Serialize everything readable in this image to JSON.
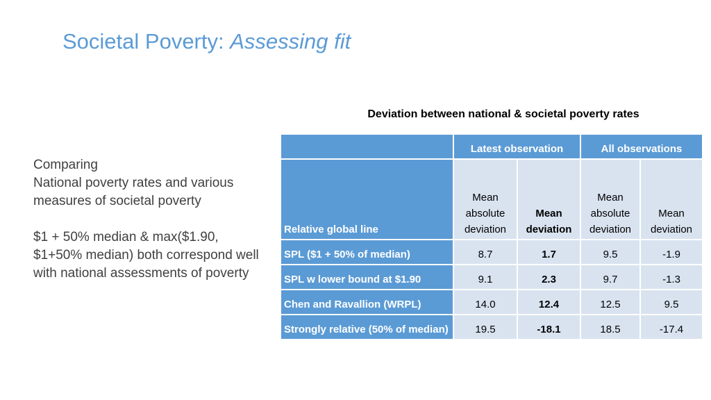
{
  "title": {
    "main": "Societal Poverty:",
    "emphasis": "Assessing fit"
  },
  "left_text": {
    "heading": "Comparing",
    "paragraphs": [
      "National poverty rates and various measures of societal poverty",
      "$1 + 50% median & max($1.90, $1+50% median) both correspond well with national assessments of poverty"
    ]
  },
  "table": {
    "caption": "Deviation between national & societal poverty rates",
    "groups": [
      "Latest observation",
      "All observations"
    ],
    "row_header": "Relative global line",
    "columns": [
      "Mean absolute deviation",
      "Mean deviation",
      "Mean absolute deviation",
      "Mean deviation"
    ],
    "rows": [
      {
        "label": "SPL ($1 + 50% of median)",
        "values": [
          "8.7",
          "1.7",
          "9.5",
          "-1.9"
        ]
      },
      {
        "label": "SPL w lower bound at $1.90",
        "values": [
          "9.1",
          "2.3",
          "9.7",
          "-1.3"
        ]
      },
      {
        "label": "Chen and Ravallion (WRPL)",
        "values": [
          "14.0",
          "12.4",
          "12.5",
          "9.5"
        ]
      },
      {
        "label": "Strongly relative (50% of median)",
        "values": [
          "19.5",
          "-18.1",
          "18.5",
          "-17.4"
        ]
      }
    ]
  }
}
